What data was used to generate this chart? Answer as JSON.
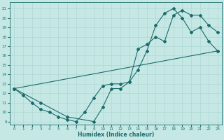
{
  "xlabel": "Humidex (Indice chaleur)",
  "xlim": [
    -0.5,
    23.5
  ],
  "ylim": [
    8.7,
    21.7
  ],
  "yticks": [
    9,
    10,
    11,
    12,
    13,
    14,
    15,
    16,
    17,
    18,
    19,
    20,
    21
  ],
  "xticks": [
    0,
    1,
    2,
    3,
    4,
    5,
    6,
    7,
    8,
    9,
    10,
    11,
    12,
    13,
    14,
    15,
    16,
    17,
    18,
    19,
    20,
    21,
    22,
    23
  ],
  "bg_color": "#c5e8e5",
  "line_color": "#1a6b6b",
  "grid_color": "#b0d8d5",
  "curve1_x": [
    0,
    1,
    2,
    3,
    4,
    5,
    6,
    7,
    8,
    9,
    10,
    11,
    12,
    13,
    14,
    15,
    16,
    17,
    18,
    19,
    20,
    21,
    22,
    23
  ],
  "curve1_y": [
    12.5,
    11.8,
    11.0,
    10.3,
    10.0,
    9.5,
    9.2,
    9.0,
    10.0,
    11.5,
    12.8,
    13.0,
    13.0,
    13.2,
    14.5,
    16.5,
    19.2,
    20.5,
    21.0,
    20.0,
    18.5,
    19.0,
    17.5,
    16.5
  ],
  "curve2_x": [
    0,
    3,
    6,
    9,
    10,
    11,
    12,
    13,
    14,
    15,
    16,
    17,
    18,
    19,
    20,
    21,
    22,
    23
  ],
  "curve2_y": [
    12.5,
    11.0,
    9.5,
    9.0,
    10.5,
    12.5,
    12.5,
    13.2,
    16.7,
    17.2,
    18.0,
    17.5,
    20.3,
    20.8,
    20.3,
    20.3,
    19.2,
    18.5
  ],
  "curve3_x": [
    0,
    23
  ],
  "curve3_y": [
    12.5,
    16.5
  ]
}
